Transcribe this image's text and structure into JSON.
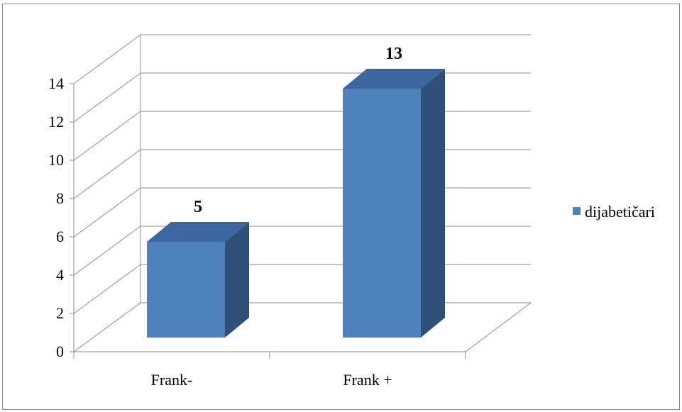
{
  "chart_data": {
    "type": "bar",
    "categories": [
      "Frank-",
      "Frank +"
    ],
    "series": [
      {
        "name": "dijabetičari",
        "values": [
          5,
          13
        ]
      }
    ],
    "data_labels": [
      "5",
      "13"
    ],
    "ylim": [
      0,
      14
    ],
    "y_ticks": [
      "0",
      "2",
      "4",
      "6",
      "8",
      "10",
      "12",
      "14"
    ],
    "grid": true,
    "legend_position": "right",
    "colors": {
      "front": "#4f81bd",
      "side": "#2f5078",
      "top": "#3b66a0"
    }
  }
}
